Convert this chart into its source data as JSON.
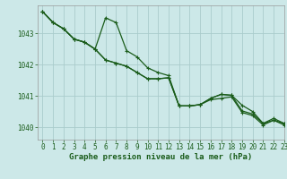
{
  "title": "Graphe pression niveau de la mer (hPa)",
  "background_color": "#cce8e8",
  "grid_color": "#aacccc",
  "line_color": "#1a5c1a",
  "xlim": [
    -0.5,
    23
  ],
  "ylim": [
    1039.6,
    1043.9
  ],
  "yticks": [
    1040,
    1041,
    1042,
    1043
  ],
  "xticks": [
    0,
    1,
    2,
    3,
    4,
    5,
    6,
    7,
    8,
    9,
    10,
    11,
    12,
    13,
    14,
    15,
    16,
    17,
    18,
    19,
    20,
    21,
    22,
    23
  ],
  "series1": [
    1043.7,
    1043.35,
    1043.15,
    1042.82,
    1042.72,
    1042.5,
    1043.5,
    1043.35,
    1042.45,
    1042.25,
    1041.9,
    1041.75,
    1041.65,
    1040.68,
    1040.68,
    1040.72,
    1040.92,
    1041.05,
    1041.02,
    1040.7,
    1040.5,
    1040.12,
    1040.22,
    1040.12
  ],
  "series2": [
    1043.7,
    1043.35,
    1043.15,
    1042.82,
    1042.72,
    1042.5,
    1042.15,
    1042.05,
    1041.95,
    1041.75,
    1041.55,
    1041.55,
    1041.58,
    1040.68,
    1040.68,
    1040.72,
    1040.92,
    1041.05,
    1041.02,
    1040.52,
    1040.42,
    1040.12,
    1040.28,
    1040.12
  ],
  "series3": [
    1043.7,
    1043.35,
    1043.15,
    1042.82,
    1042.72,
    1042.5,
    1042.15,
    1042.05,
    1041.95,
    1041.75,
    1041.55,
    1041.55,
    1041.58,
    1040.68,
    1040.68,
    1040.72,
    1040.88,
    1040.92,
    1040.97,
    1040.47,
    1040.37,
    1040.07,
    1040.22,
    1040.07
  ],
  "ylabel_fontsize": 5.5,
  "xlabel_fontsize": 6.5,
  "tick_fontsize": 5.5
}
